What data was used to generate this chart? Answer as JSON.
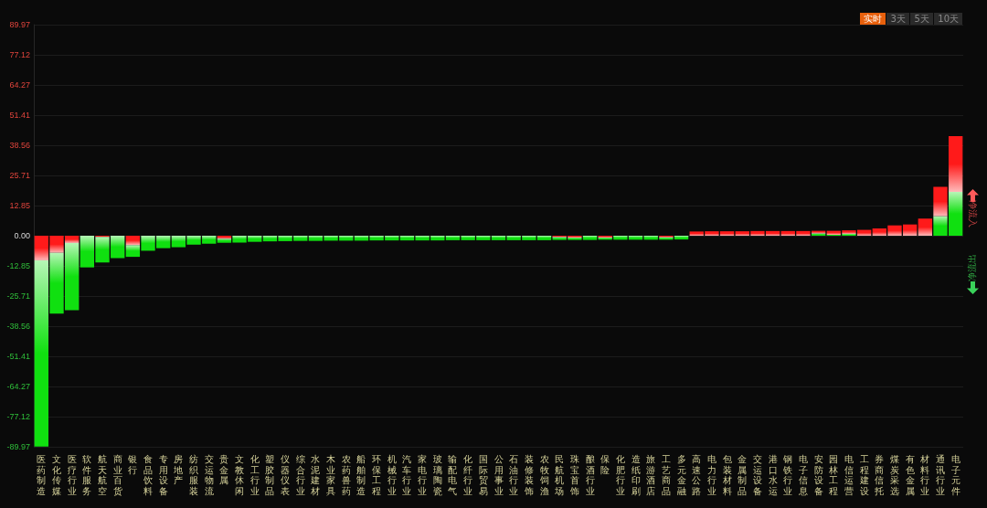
{
  "chart_data": {
    "type": "bar",
    "stacked": true,
    "categories": [
      "医药制造",
      "文化传媒",
      "医疗行业",
      "软件服务",
      "航天航空",
      "商业百货",
      "银行",
      "食品饮料",
      "专用设备",
      "房地产",
      "纺织服装",
      "交运物流",
      "贵金属",
      "文教休闲",
      "化工行业",
      "塑胶制品",
      "仪器仪表",
      "综合行业",
      "水泥建材",
      "木业家具",
      "农药兽药",
      "船舶制造",
      "环保工程",
      "机械行业",
      "汽车行业",
      "家电行业",
      "玻璃陶瓷",
      "输配电气",
      "化纤行业",
      "国际贸易",
      "公用事业",
      "石油行业",
      "装修装饰",
      "农牧饲渔",
      "民航机场",
      "珠宝首饰",
      "酿酒行业",
      "保险",
      "化肥行业",
      "造纸印刷",
      "旅游酒店",
      "工艺商品",
      "多元金融",
      "高速公路",
      "电力行业",
      "包装材料",
      "金属制品",
      "交运设备",
      "港口水运",
      "钢铁行业",
      "电子信息",
      "安防设备",
      "园林工程",
      "电信运营",
      "工程建设",
      "券商信托",
      "煤炭采选",
      "有色金属",
      "材料行业",
      "通讯行业",
      "电子元件"
    ],
    "series": [
      {
        "colors": [
          "#ff1a1a",
          "#ff1a1a",
          "#ff1a1a",
          null,
          "#ff1a1a",
          null,
          "#ff1a1a",
          null,
          null,
          null,
          null,
          null,
          "#ff1a1a",
          null,
          null,
          null,
          null,
          null,
          null,
          null,
          null,
          null,
          null,
          null,
          null,
          null,
          null,
          null,
          null,
          null,
          null,
          null,
          null,
          null,
          "#ff1a1a",
          "#ff1a1a",
          null,
          "#ff1a1a",
          null,
          null,
          null,
          "#ff1a1a",
          null,
          null,
          null,
          null,
          null,
          null,
          null,
          null,
          null,
          "#10e010",
          "#10e010",
          "#10e010",
          null,
          null,
          null,
          null,
          null,
          "#10e010",
          "#10e010"
        ],
        "values": [
          -10.5,
          -7.3,
          -3.1,
          null,
          -0.5,
          null,
          -4.0,
          null,
          null,
          null,
          null,
          null,
          -1.3,
          null,
          null,
          null,
          null,
          null,
          null,
          null,
          null,
          null,
          null,
          null,
          null,
          null,
          null,
          null,
          null,
          null,
          null,
          null,
          null,
          null,
          -0.6,
          -0.8,
          null,
          -0.8,
          null,
          null,
          null,
          -0.7,
          null,
          null,
          null,
          null,
          null,
          null,
          null,
          null,
          null,
          1.0,
          0.4,
          0.8,
          null,
          null,
          null,
          null,
          null,
          8.4,
          18.7
        ]
      },
      {
        "colors": [
          "#10e010",
          "#10e010",
          "#10e010",
          "#10e010",
          "#10e010",
          "#10e010",
          "#10e010",
          "#10e010",
          "#10e010",
          "#10e010",
          "#10e010",
          "#10e010",
          "#10e010",
          "#10e010",
          "#10e010",
          "#10e010",
          "#10e010",
          "#10e010",
          "#10e010",
          "#10e010",
          "#10e010",
          "#10e010",
          "#10e010",
          "#10e010",
          "#10e010",
          "#10e010",
          "#10e010",
          "#10e010",
          "#10e010",
          "#10e010",
          "#10e010",
          "#10e010",
          "#10e010",
          "#10e010",
          "#10e010",
          "#10e010",
          "#10e010",
          "#10e010",
          "#10e010",
          "#10e010",
          "#10e010",
          "#10e010",
          "#10e010",
          "#ff1a1a",
          "#ff1a1a",
          "#ff1a1a",
          "#ff1a1a",
          "#ff1a1a",
          "#ff1a1a",
          "#ff1a1a",
          "#ff1a1a",
          "#ff1a1a",
          "#ff1a1a",
          "#ff1a1a",
          "#ff1a1a",
          "#ff1a1a",
          "#ff1a1a",
          "#ff1a1a",
          "#ff1a1a",
          "#ff1a1a",
          "#ff1a1a"
        ],
        "values": [
          -79.4,
          -25.9,
          -28.6,
          -13.5,
          -10.9,
          -9.5,
          -5.0,
          -6.4,
          -5.3,
          -4.9,
          -3.8,
          -3.4,
          -1.7,
          -2.9,
          -2.6,
          -2.4,
          -2.3,
          -2.2,
          -2.2,
          -2.1,
          -2.1,
          -2.1,
          -2.0,
          -2.0,
          -2.0,
          -2.0,
          -2.0,
          -1.9,
          -1.9,
          -1.9,
          -1.9,
          -1.9,
          -1.9,
          -1.9,
          -1.2,
          -1.0,
          -1.8,
          -0.9,
          -1.7,
          -1.7,
          -1.7,
          -1.0,
          -1.6,
          1.8,
          1.9,
          1.9,
          1.9,
          2.0,
          2.0,
          2.0,
          2.0,
          1.1,
          1.7,
          1.5,
          2.5,
          3.1,
          4.4,
          4.8,
          7.3,
          12.4,
          23.8
        ]
      }
    ],
    "ylim": [
      -89.97,
      89.97
    ],
    "yticks": [
      -89.97,
      -77.12,
      -64.27,
      -51.41,
      -38.56,
      -25.71,
      -12.85,
      {
        "value": 0,
        "label": "0.00"
      },
      12.85,
      25.71,
      38.56,
      51.41,
      64.27,
      77.12,
      89.97
    ],
    "grid": "y",
    "annotations": [
      "实时",
      "3天",
      "5天",
      "10天",
      "净流入",
      "净流出"
    ]
  }
}
